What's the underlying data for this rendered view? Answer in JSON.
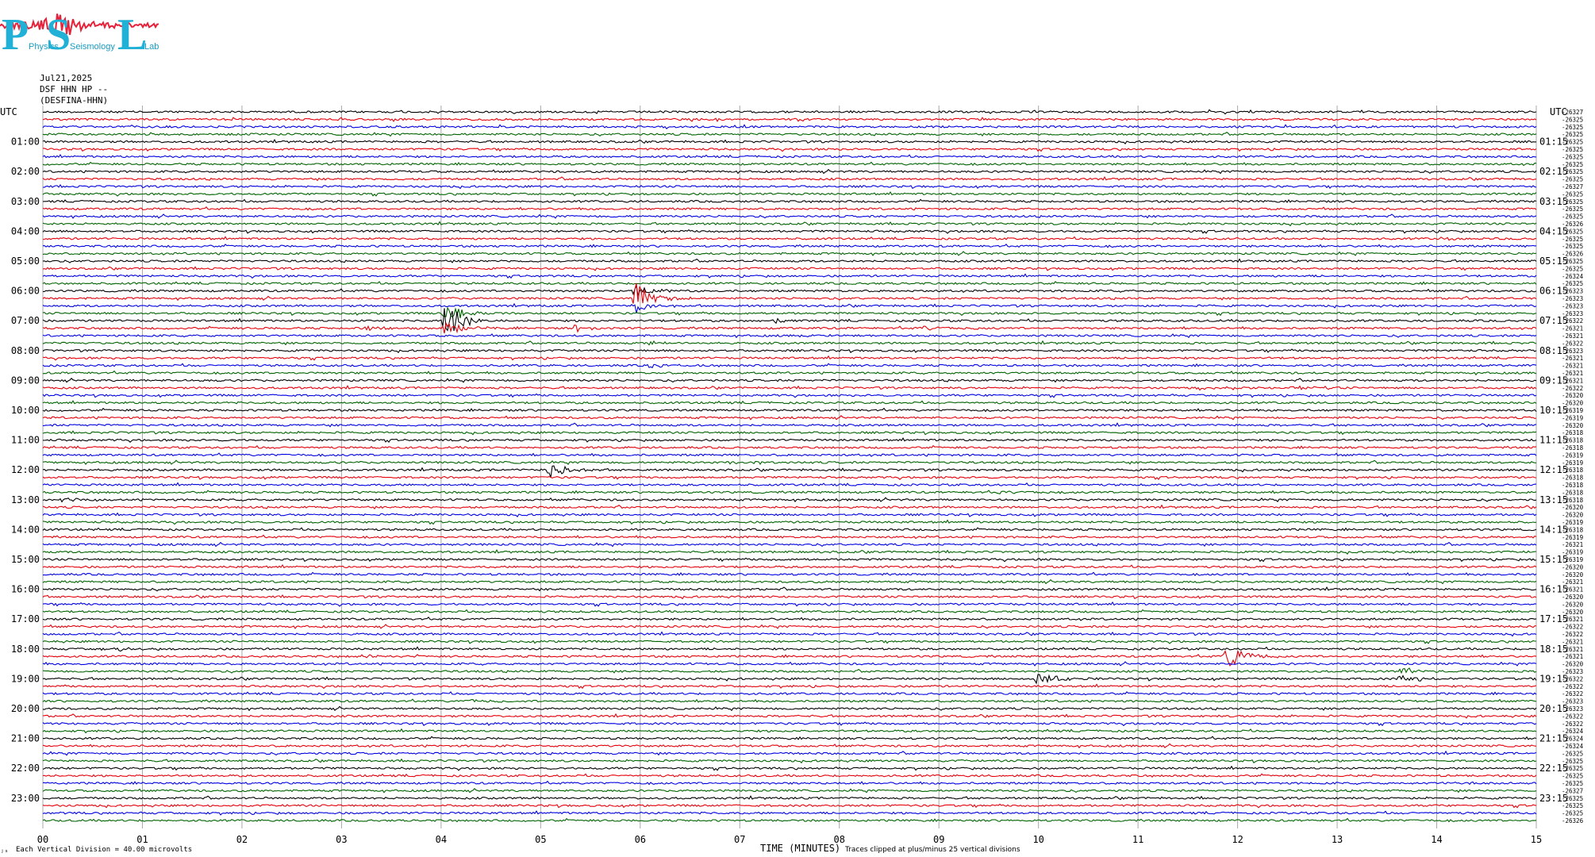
{
  "logo": {
    "letters": [
      "P",
      "S",
      "L"
    ],
    "words": [
      "Physics",
      "Seismology",
      "Lab"
    ],
    "color": "#21b0d6",
    "waveform_color": "#e8213a"
  },
  "header": {
    "date": "Jul21,2025",
    "station": "DSF HHN HP --",
    "station_name": "(DESFINA-HHN)"
  },
  "utc_left_title": "UTC",
  "utc_right_title": "UTC",
  "footer": {
    "division_note": "Each Vertical Division =   40.00 microvolts",
    "x_axis_title": "TIME (MINUTES)",
    "clip_note": "Traces clipped at plus/minus 25 vertical divisions",
    "corner_mark": "ⱼₛ"
  },
  "colors": {
    "trace_cycle": [
      "#000000",
      "#e8000b",
      "#0000e6",
      "#006400"
    ],
    "grid": "#a8a8a8"
  },
  "chart_data": {
    "type": "line",
    "title": "",
    "xlabel": "TIME (MINUTES)",
    "ylabel": "UTC",
    "x_range": [
      0,
      15
    ],
    "x_ticks": [
      "00",
      "01",
      "02",
      "03",
      "04",
      "05",
      "06",
      "07",
      "08",
      "09",
      "10",
      "11",
      "12",
      "13",
      "14",
      "15"
    ],
    "trace_count": 96,
    "minutes_per_trace": 15,
    "grid": true,
    "left_hour_labels": [
      "01:00",
      "02:00",
      "03:00",
      "04:00",
      "05:00",
      "06:00",
      "07:00",
      "08:00",
      "09:00",
      "10:00",
      "11:00",
      "12:00",
      "13:00",
      "14:00",
      "15:00",
      "16:00",
      "17:00",
      "18:00",
      "19:00",
      "20:00",
      "21:00",
      "22:00",
      "23:00"
    ],
    "right_hour_labels": [
      "01:15",
      "02:15",
      "03:15",
      "04:15",
      "05:15",
      "06:15",
      "07:15",
      "08:15",
      "09:15",
      "10:15",
      "11:15",
      "12:15",
      "13:15",
      "14:15",
      "15:15",
      "16:15",
      "17:15",
      "18:15",
      "19:15",
      "20:15",
      "21:15",
      "22:15",
      "23:15"
    ],
    "trace_offsets": [
      "-26327",
      "-26325",
      "-26325",
      "-26325",
      "-26325",
      "-26325",
      "-26325",
      "-26325",
      "-26325",
      "-26325",
      "-26327",
      "-26325",
      "-26325",
      "-26325",
      "-26325",
      "-26326",
      "-26325",
      "-26325",
      "-26325",
      "-26326",
      "-26325",
      "-26325",
      "-26324",
      "-26325",
      "-26323",
      "-26323",
      "-26323",
      "-26323",
      "-26322",
      "-26321",
      "-26321",
      "-26322",
      "-26323",
      "-26321",
      "-26321",
      "-26321",
      "-26321",
      "-26322",
      "-26320",
      "-26320",
      "-26319",
      "-26319",
      "-26320",
      "-26318",
      "-26318",
      "-26318",
      "-26319",
      "-26319",
      "-26318",
      "-26318",
      "-26318",
      "-26318",
      "-26318",
      "-26320",
      "-26320",
      "-26319",
      "-26318",
      "-26319",
      "-26321",
      "-26319",
      "-26319",
      "-26320",
      "-26320",
      "-26321",
      "-26321",
      "-26320",
      "-26320",
      "-26320",
      "-26321",
      "-26322",
      "-26322",
      "-26321",
      "-26321",
      "-26321",
      "-26320",
      "-26323",
      "-26322",
      "-26322",
      "-26322",
      "-26323",
      "-26323",
      "-26322",
      "-26322",
      "-26324",
      "-26324",
      "-26324",
      "-26325",
      "-26325",
      "-26325",
      "-26325",
      "-26325",
      "-26327",
      "-26325",
      "-26325",
      "-26325",
      "-26326"
    ],
    "events": [
      {
        "trace": 24,
        "minute": 5.95,
        "amp": 9
      },
      {
        "trace": 25,
        "minute": 5.95,
        "amp": 22
      },
      {
        "trace": 26,
        "minute": 5.95,
        "amp": 11
      },
      {
        "trace": 27,
        "minute": 4.05,
        "amp": 16
      },
      {
        "trace": 28,
        "minute": 4.05,
        "amp": 28
      },
      {
        "trace": 29,
        "minute": 4.05,
        "amp": 12
      },
      {
        "trace": 28,
        "minute": 7.35,
        "amp": 3
      },
      {
        "trace": 29,
        "minute": 5.35,
        "amp": 4
      },
      {
        "trace": 29,
        "minute": 3.25,
        "amp": 3
      },
      {
        "trace": 29,
        "minute": 8.85,
        "amp": 3
      },
      {
        "trace": 30,
        "minute": 7.6,
        "amp": 3
      },
      {
        "trace": 31,
        "minute": 6.1,
        "amp": 3
      },
      {
        "trace": 34,
        "minute": 6.1,
        "amp": 3
      },
      {
        "trace": 37,
        "minute": 11.6,
        "amp": 3
      },
      {
        "trace": 37,
        "minute": 12.55,
        "amp": 3
      },
      {
        "trace": 47,
        "minute": 6.9,
        "amp": 2
      },
      {
        "trace": 48,
        "minute": 5.1,
        "amp": 10
      },
      {
        "trace": 52,
        "minute": 0.2,
        "amp": 3
      },
      {
        "trace": 51,
        "minute": 9.6,
        "amp": 2
      },
      {
        "trace": 72,
        "minute": 0.6,
        "amp": 4
      },
      {
        "trace": 73,
        "minute": 3.2,
        "amp": 2
      },
      {
        "trace": 73,
        "minute": 11.9,
        "amp": 20
      },
      {
        "trace": 76,
        "minute": 10.0,
        "amp": 10
      },
      {
        "trace": 75,
        "minute": 13.65,
        "amp": 5
      },
      {
        "trace": 76,
        "minute": 13.65,
        "amp": 10
      },
      {
        "trace": 79,
        "minute": 4.3,
        "amp": 2
      },
      {
        "trace": 90,
        "minute": 14.0,
        "amp": 2
      },
      {
        "trace": 17,
        "minute": 14.0,
        "amp": 3
      }
    ]
  }
}
